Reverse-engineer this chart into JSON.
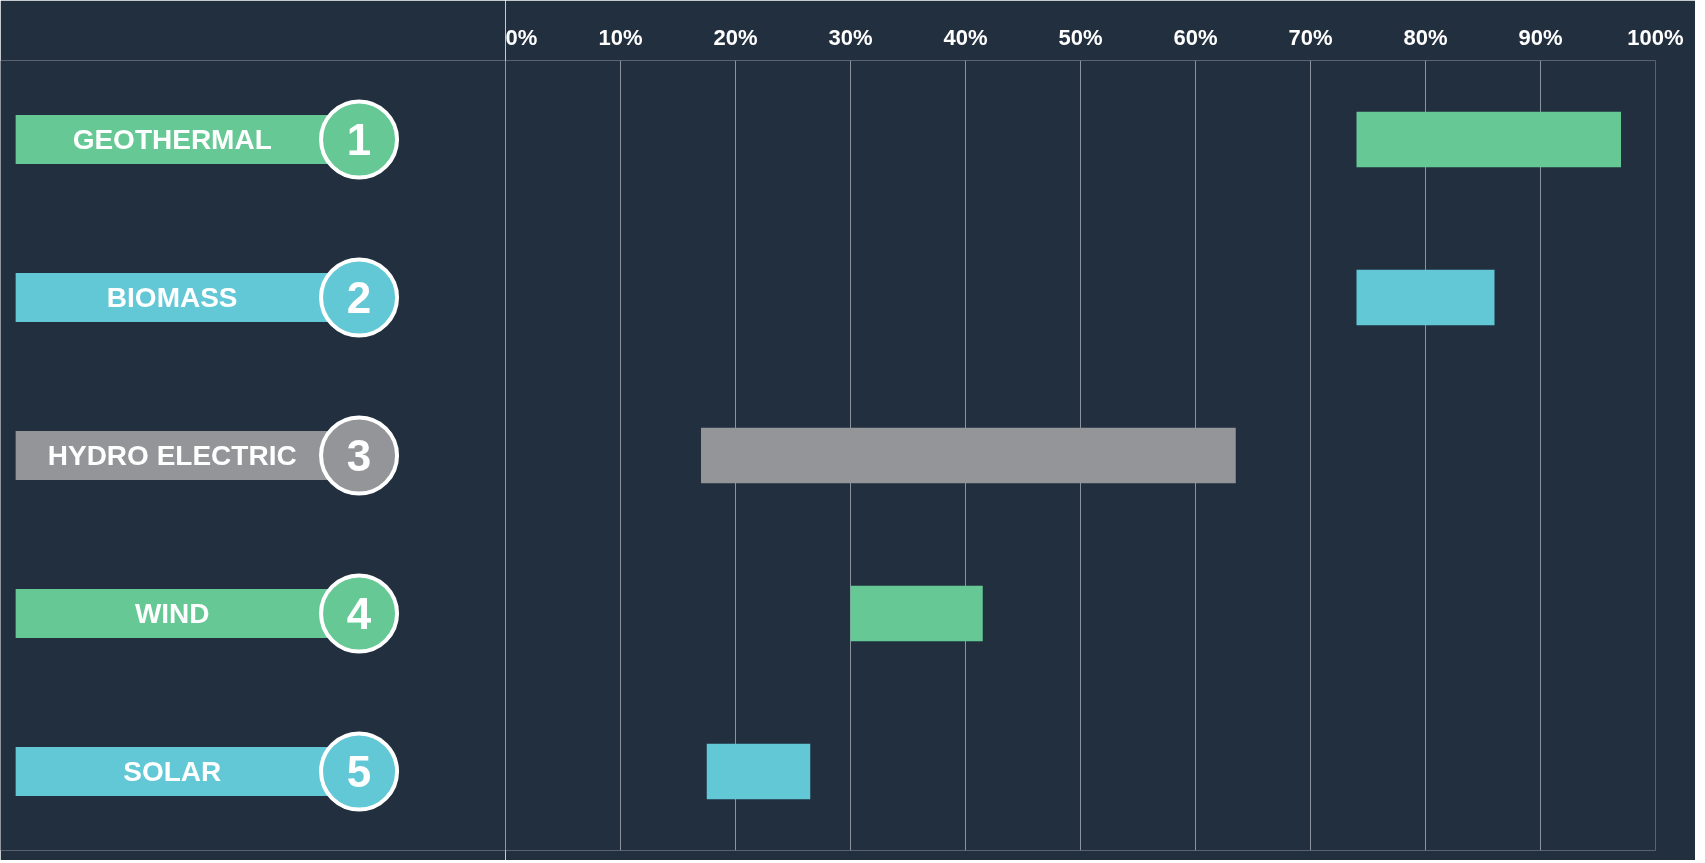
{
  "chart_data": {
    "type": "bar",
    "orientation": "horizontal",
    "categories": [
      "GEOTHERMAL",
      "BIOMASS",
      "HYDRO ELECTRIC",
      "WIND",
      "SOLAR"
    ],
    "base": [
      74,
      74,
      17,
      30,
      17.5
    ],
    "values": [
      23,
      12,
      46.5,
      11.5,
      9
    ],
    "colors": [
      "#66c995",
      "#62c8d5",
      "#939598",
      "#66c995",
      "#62c8d5"
    ],
    "annotations": [
      "1",
      "2",
      "3",
      "4",
      "5"
    ],
    "xlim": [
      0,
      100
    ],
    "xticks": [
      {
        "value": 0,
        "label": "0%"
      },
      {
        "value": 10,
        "label": "10%"
      },
      {
        "value": 20,
        "label": "20%"
      },
      {
        "value": 30,
        "label": "30%"
      },
      {
        "value": 40,
        "label": "40%"
      },
      {
        "value": 50,
        "label": "50%"
      },
      {
        "value": 60,
        "label": "60%"
      },
      {
        "value": 70,
        "label": "70%"
      },
      {
        "value": 80,
        "label": "80%"
      },
      {
        "value": 90,
        "label": "90%"
      },
      {
        "value": 100,
        "label": "100%"
      }
    ],
    "grid": "x"
  }
}
